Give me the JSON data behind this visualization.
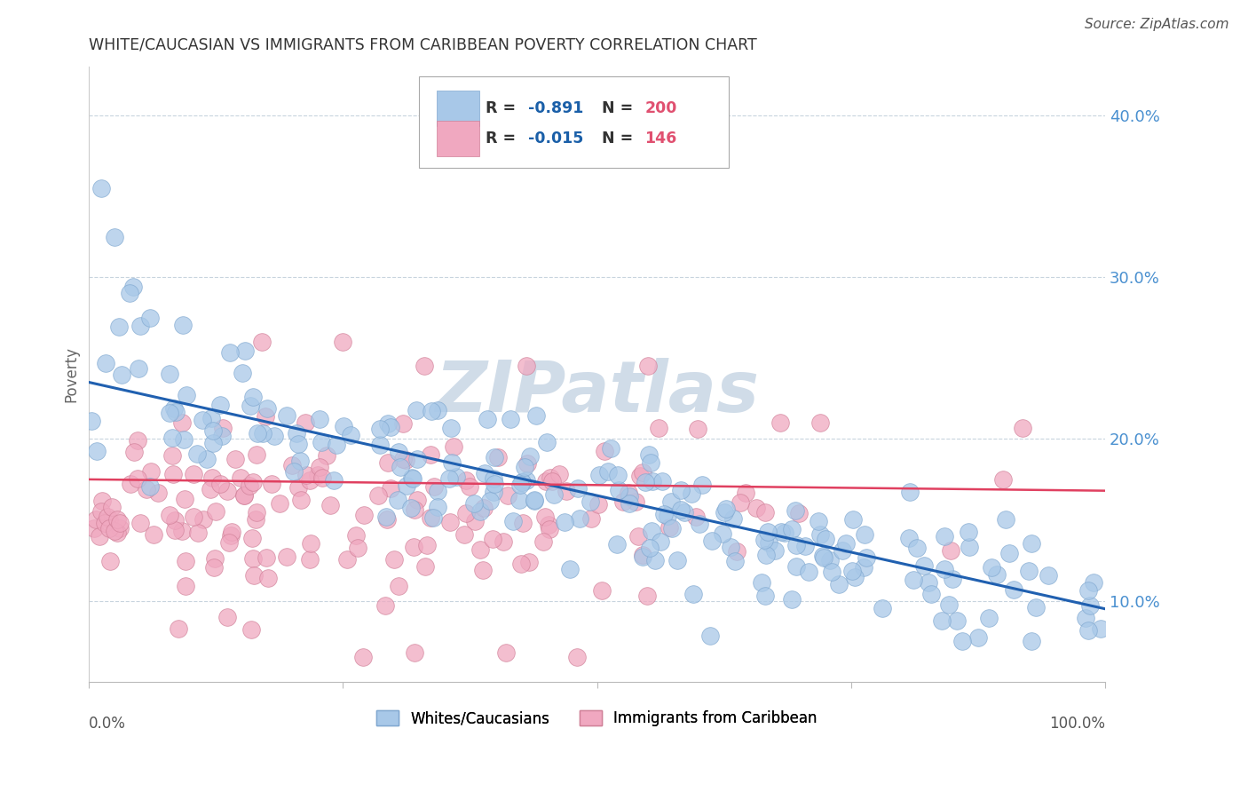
{
  "title": "WHITE/CAUCASIAN VS IMMIGRANTS FROM CARIBBEAN POVERTY CORRELATION CHART",
  "source": "Source: ZipAtlas.com",
  "ylabel": "Poverty",
  "ytick_vals": [
    0.1,
    0.2,
    0.3,
    0.4
  ],
  "ytick_labels": [
    "10.0%",
    "20.0%",
    "30.0%",
    "40.0%"
  ],
  "blue_color": "#a8c8e8",
  "pink_color": "#f0a8c0",
  "blue_line_color": "#2060b0",
  "pink_line_color": "#e04060",
  "blue_edge_color": "#80a8d0",
  "pink_edge_color": "#d08098",
  "rval_color": "#1a5fa8",
  "nval_color": "#e05070",
  "watermark_color": "#d0dce8",
  "background_color": "#ffffff",
  "grid_color": "#c8d4de",
  "yaxis_tick_color": "#4a90d0",
  "xlim": [
    0.0,
    1.0
  ],
  "ylim": [
    0.05,
    0.43
  ],
  "blue_line_x0": 0.0,
  "blue_line_y0": 0.235,
  "blue_line_x1": 1.0,
  "blue_line_y1": 0.095,
  "pink_line_x0": 0.0,
  "pink_line_y0": 0.175,
  "pink_line_x1": 1.0,
  "pink_line_y1": 0.168
}
